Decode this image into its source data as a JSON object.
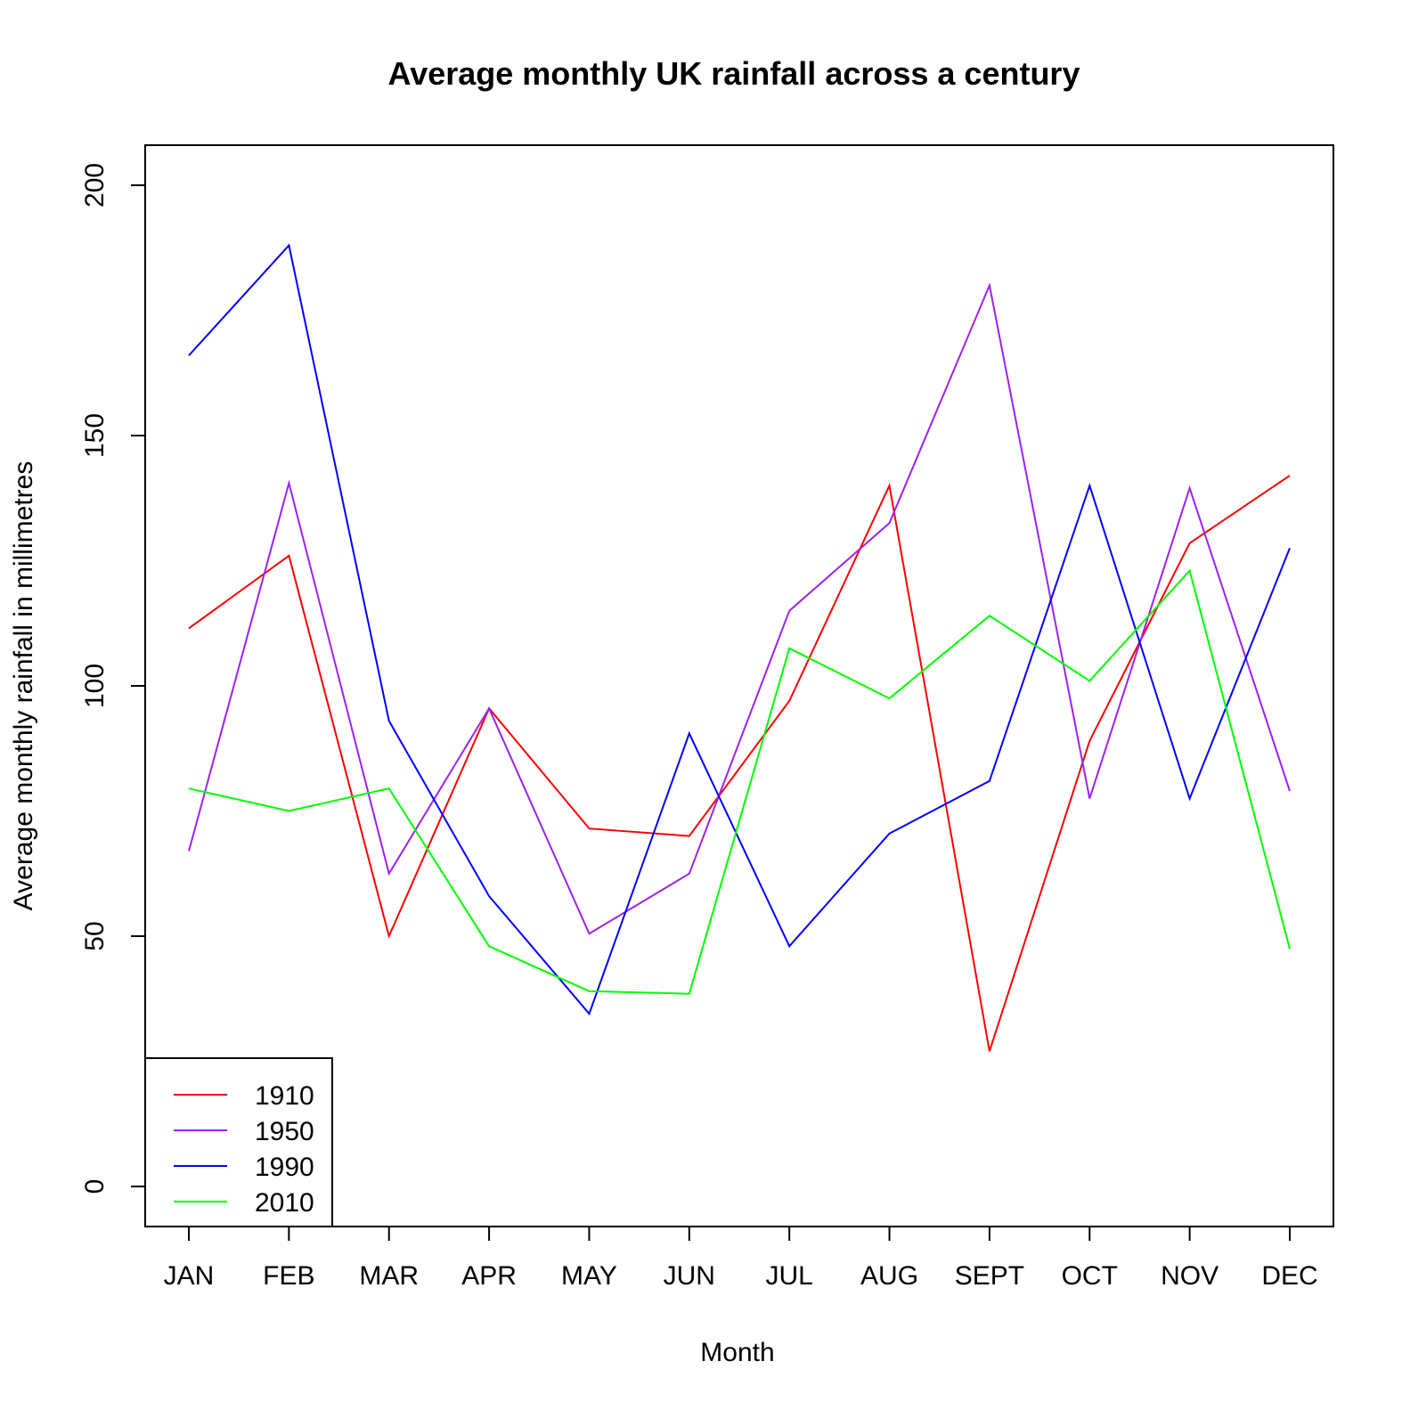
{
  "chart_data": {
    "type": "line",
    "title": "Average monthly UK rainfall across a century",
    "xlabel": "Month",
    "ylabel": "Average monthly rainfall in millimetres",
    "categories": [
      "JAN",
      "FEB",
      "MAR",
      "APR",
      "MAY",
      "JUN",
      "JUL",
      "AUG",
      "SEPT",
      "OCT",
      "NOV",
      "DEC"
    ],
    "ylim": [
      -8,
      208
    ],
    "yticks": [
      0,
      50,
      100,
      150,
      200
    ],
    "grid": false,
    "legend_position": "bottom-left",
    "series": [
      {
        "name": "1910",
        "color": "#ff0000",
        "values": [
          111.5,
          126,
          50,
          95.5,
          71.5,
          70,
          97,
          140,
          27,
          89,
          128.5,
          142
        ]
      },
      {
        "name": "1950",
        "color": "#a020f0",
        "values": [
          67,
          140.5,
          62.5,
          95.5,
          50.5,
          62.5,
          115,
          132.5,
          180,
          77.5,
          139.5,
          79
        ]
      },
      {
        "name": "1990",
        "color": "#0000ff",
        "values": [
          166,
          188,
          93,
          58,
          34.5,
          90.5,
          48,
          70.5,
          81,
          140,
          77.5,
          127.5
        ]
      },
      {
        "name": "2010",
        "color": "#00ff00",
        "values": [
          79.5,
          75,
          79.5,
          48,
          39,
          38.5,
          107.5,
          97.5,
          114,
          101,
          123,
          47.5
        ]
      }
    ]
  }
}
